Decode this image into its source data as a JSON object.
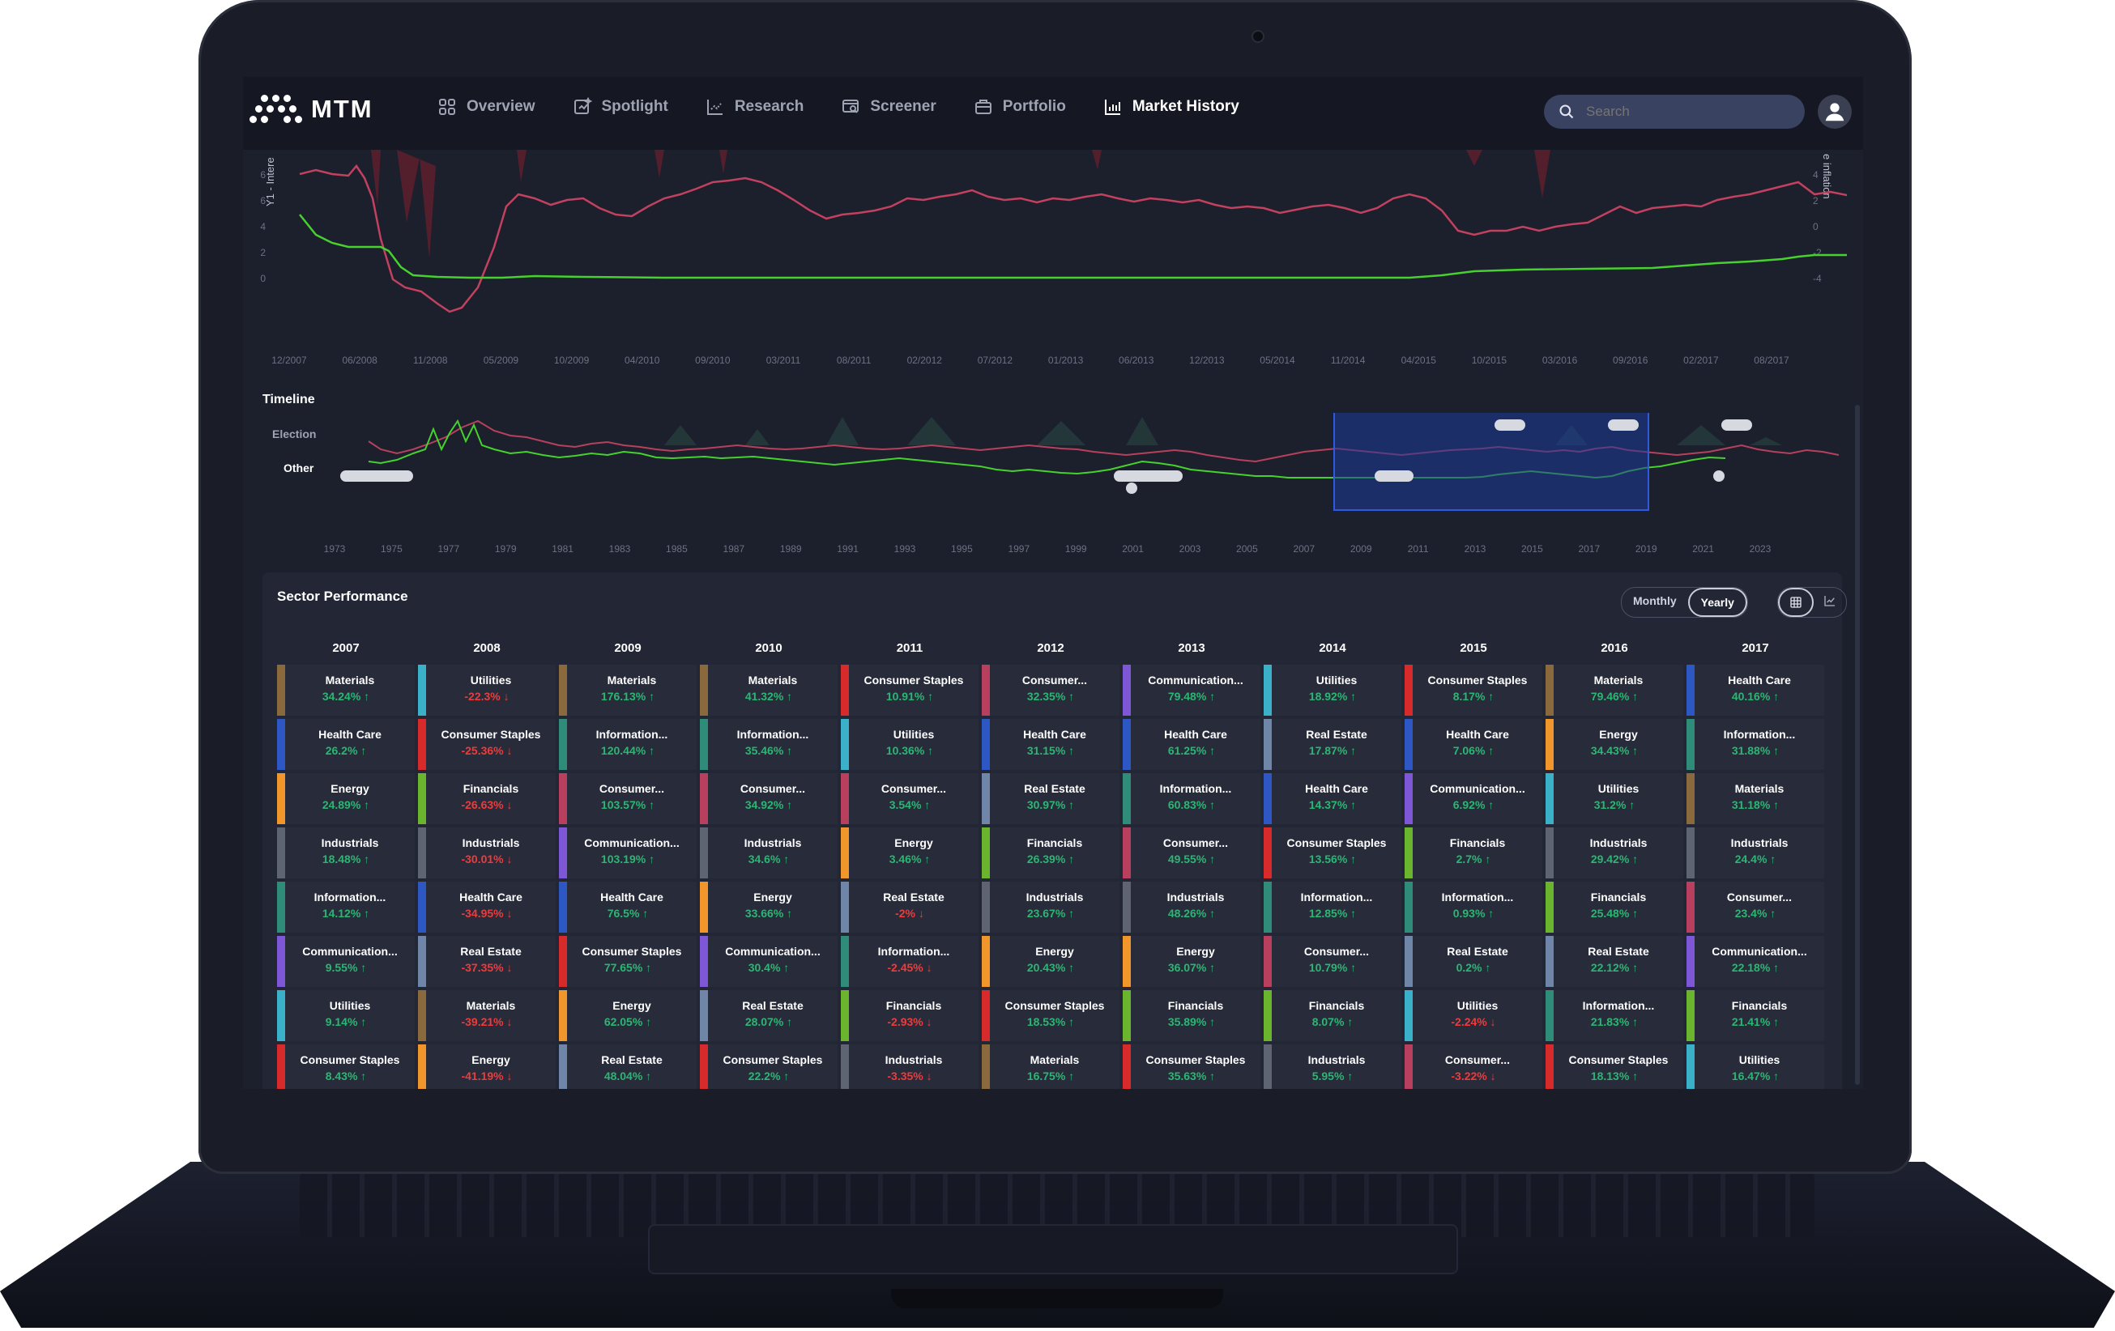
{
  "app": {
    "logo_text": "MTM",
    "nav": [
      {
        "label": "Overview",
        "icon": "grid-icon"
      },
      {
        "label": "Spotlight",
        "icon": "spotlight-icon"
      },
      {
        "label": "Research",
        "icon": "research-chart-icon"
      },
      {
        "label": "Screener",
        "icon": "screener-icon"
      },
      {
        "label": "Portfolio",
        "icon": "briefcase-icon"
      },
      {
        "label": "Market History",
        "icon": "bar-chart-icon",
        "active": true
      }
    ],
    "search_placeholder": "Search"
  },
  "main_chart": {
    "y_left_label": "Y1 - Intere",
    "y_right_label": "e inflation",
    "y_left_ticks": [
      "6",
      "6",
      "4",
      "2",
      "0"
    ],
    "y_right_ticks": [
      "4",
      "2",
      "0",
      "-2",
      "-4"
    ],
    "x_ticks": [
      "12/2007",
      "06/2008",
      "11/2008",
      "05/2009",
      "10/2009",
      "04/2010",
      "09/2010",
      "03/2011",
      "08/2011",
      "02/2012",
      "07/2012",
      "01/2013",
      "06/2013",
      "12/2013",
      "05/2014",
      "11/2014",
      "04/2015",
      "10/2015",
      "03/2016",
      "09/2016",
      "02/2017",
      "08/2017"
    ],
    "colors": {
      "pink": "#c2415f",
      "green": "#46d12e"
    }
  },
  "timeline": {
    "title": "Timeline",
    "rows": [
      "Election",
      "Other"
    ],
    "x_ticks": [
      "1973",
      "1975",
      "1977",
      "1979",
      "1981",
      "1983",
      "1985",
      "1987",
      "1989",
      "1991",
      "1993",
      "1995",
      "1997",
      "1999",
      "2001",
      "2003",
      "2005",
      "2007",
      "2009",
      "2011",
      "2013",
      "2015",
      "2017",
      "2019",
      "2021",
      "2023"
    ]
  },
  "sector_performance": {
    "title": "Sector Performance",
    "period_options": [
      "Monthly",
      "Yearly"
    ],
    "selected_period": "Yearly",
    "colors": {
      "Materials": "#8a6a3c",
      "Utilities": "#3bb0c9",
      "Health Care": "#2d58c4",
      "Consumer Staples": "#d72b2b",
      "Energy": "#f0962a",
      "Financials": "#6ab42e",
      "Industrials": "#5f6472",
      "Information...": "#2e8c78",
      "Communication...": "#7d57d6",
      "Real Estate": "#6f86a8",
      "Consumer...": "#b8405e"
    },
    "years": [
      {
        "year": "2007",
        "items": [
          {
            "name": "Materials",
            "value": "34.24%",
            "dir": "up"
          },
          {
            "name": "Health Care",
            "value": "26.2%",
            "dir": "up"
          },
          {
            "name": "Energy",
            "value": "24.89%",
            "dir": "up"
          },
          {
            "name": "Industrials",
            "value": "18.48%",
            "dir": "up"
          },
          {
            "name": "Information...",
            "value": "14.12%",
            "dir": "up"
          },
          {
            "name": "Communication...",
            "value": "9.55%",
            "dir": "up"
          },
          {
            "name": "Utilities",
            "value": "9.14%",
            "dir": "up"
          },
          {
            "name": "Consumer Staples",
            "value": "8.43%",
            "dir": "up"
          }
        ]
      },
      {
        "year": "2008",
        "items": [
          {
            "name": "Utilities",
            "value": "-22.3%",
            "dir": "down"
          },
          {
            "name": "Consumer Staples",
            "value": "-25.36%",
            "dir": "down"
          },
          {
            "name": "Financials",
            "value": "-26.63%",
            "dir": "down"
          },
          {
            "name": "Industrials",
            "value": "-30.01%",
            "dir": "down"
          },
          {
            "name": "Health Care",
            "value": "-34.95%",
            "dir": "down"
          },
          {
            "name": "Real Estate",
            "value": "-37.35%",
            "dir": "down"
          },
          {
            "name": "Materials",
            "value": "-39.21%",
            "dir": "down"
          },
          {
            "name": "Energy",
            "value": "-41.19%",
            "dir": "down"
          }
        ]
      },
      {
        "year": "2009",
        "items": [
          {
            "name": "Materials",
            "value": "176.13%",
            "dir": "up"
          },
          {
            "name": "Information...",
            "value": "120.44%",
            "dir": "up"
          },
          {
            "name": "Consumer...",
            "value": "103.57%",
            "dir": "up"
          },
          {
            "name": "Communication...",
            "value": "103.19%",
            "dir": "up"
          },
          {
            "name": "Health Care",
            "value": "76.5%",
            "dir": "up"
          },
          {
            "name": "Consumer Staples",
            "value": "77.65%",
            "dir": "up"
          },
          {
            "name": "Energy",
            "value": "62.05%",
            "dir": "up"
          },
          {
            "name": "Real Estate",
            "value": "48.04%",
            "dir": "up"
          }
        ]
      },
      {
        "year": "2010",
        "items": [
          {
            "name": "Materials",
            "value": "41.32%",
            "dir": "up"
          },
          {
            "name": "Information...",
            "value": "35.46%",
            "dir": "up"
          },
          {
            "name": "Consumer...",
            "value": "34.92%",
            "dir": "up"
          },
          {
            "name": "Industrials",
            "value": "34.6%",
            "dir": "up"
          },
          {
            "name": "Energy",
            "value": "33.66%",
            "dir": "up"
          },
          {
            "name": "Communication...",
            "value": "30.4%",
            "dir": "up"
          },
          {
            "name": "Real Estate",
            "value": "28.07%",
            "dir": "up"
          },
          {
            "name": "Consumer Staples",
            "value": "22.2%",
            "dir": "up"
          }
        ]
      },
      {
        "year": "2011",
        "items": [
          {
            "name": "Consumer Staples",
            "value": "10.91%",
            "dir": "up"
          },
          {
            "name": "Utilities",
            "value": "10.36%",
            "dir": "up"
          },
          {
            "name": "Consumer...",
            "value": "3.54%",
            "dir": "up"
          },
          {
            "name": "Energy",
            "value": "3.46%",
            "dir": "up"
          },
          {
            "name": "Real Estate",
            "value": "-2%",
            "dir": "down"
          },
          {
            "name": "Information...",
            "value": "-2.45%",
            "dir": "down"
          },
          {
            "name": "Financials",
            "value": "-2.93%",
            "dir": "down"
          },
          {
            "name": "Industrials",
            "value": "-3.35%",
            "dir": "down"
          }
        ]
      },
      {
        "year": "2012",
        "items": [
          {
            "name": "Consumer...",
            "value": "32.35%",
            "dir": "up"
          },
          {
            "name": "Health Care",
            "value": "31.15%",
            "dir": "up"
          },
          {
            "name": "Real Estate",
            "value": "30.97%",
            "dir": "up"
          },
          {
            "name": "Financials",
            "value": "26.39%",
            "dir": "up"
          },
          {
            "name": "Industrials",
            "value": "23.67%",
            "dir": "up"
          },
          {
            "name": "Energy",
            "value": "20.43%",
            "dir": "up"
          },
          {
            "name": "Consumer Staples",
            "value": "18.53%",
            "dir": "up"
          },
          {
            "name": "Materials",
            "value": "16.75%",
            "dir": "up"
          }
        ]
      },
      {
        "year": "2013",
        "items": [
          {
            "name": "Communication...",
            "value": "79.48%",
            "dir": "up"
          },
          {
            "name": "Health Care",
            "value": "61.25%",
            "dir": "up"
          },
          {
            "name": "Information...",
            "value": "60.83%",
            "dir": "up"
          },
          {
            "name": "Consumer...",
            "value": "49.55%",
            "dir": "up"
          },
          {
            "name": "Industrials",
            "value": "48.26%",
            "dir": "up"
          },
          {
            "name": "Energy",
            "value": "36.07%",
            "dir": "up"
          },
          {
            "name": "Financials",
            "value": "35.89%",
            "dir": "up"
          },
          {
            "name": "Consumer Staples",
            "value": "35.63%",
            "dir": "up"
          }
        ]
      },
      {
        "year": "2014",
        "items": [
          {
            "name": "Utilities",
            "value": "18.92%",
            "dir": "up"
          },
          {
            "name": "Real Estate",
            "value": "17.87%",
            "dir": "up"
          },
          {
            "name": "Health Care",
            "value": "14.37%",
            "dir": "up"
          },
          {
            "name": "Consumer Staples",
            "value": "13.56%",
            "dir": "up"
          },
          {
            "name": "Information...",
            "value": "12.85%",
            "dir": "up"
          },
          {
            "name": "Consumer...",
            "value": "10.79%",
            "dir": "up"
          },
          {
            "name": "Financials",
            "value": "8.07%",
            "dir": "up"
          },
          {
            "name": "Industrials",
            "value": "5.95%",
            "dir": "up"
          }
        ]
      },
      {
        "year": "2015",
        "items": [
          {
            "name": "Consumer Staples",
            "value": "8.17%",
            "dir": "up"
          },
          {
            "name": "Health Care",
            "value": "7.06%",
            "dir": "up"
          },
          {
            "name": "Communication...",
            "value": "6.92%",
            "dir": "up"
          },
          {
            "name": "Financials",
            "value": "2.7%",
            "dir": "up"
          },
          {
            "name": "Information...",
            "value": "0.93%",
            "dir": "up"
          },
          {
            "name": "Real Estate",
            "value": "0.2%",
            "dir": "up"
          },
          {
            "name": "Utilities",
            "value": "-2.24%",
            "dir": "down"
          },
          {
            "name": "Consumer...",
            "value": "-3.22%",
            "dir": "down"
          }
        ]
      },
      {
        "year": "2016",
        "items": [
          {
            "name": "Materials",
            "value": "79.46%",
            "dir": "up"
          },
          {
            "name": "Energy",
            "value": "34.43%",
            "dir": "up"
          },
          {
            "name": "Utilities",
            "value": "31.2%",
            "dir": "up"
          },
          {
            "name": "Industrials",
            "value": "29.42%",
            "dir": "up"
          },
          {
            "name": "Financials",
            "value": "25.48%",
            "dir": "up"
          },
          {
            "name": "Real Estate",
            "value": "22.12%",
            "dir": "up"
          },
          {
            "name": "Information...",
            "value": "21.83%",
            "dir": "up"
          },
          {
            "name": "Consumer Staples",
            "value": "18.13%",
            "dir": "up"
          }
        ]
      },
      {
        "year": "2017",
        "items": [
          {
            "name": "Health Care",
            "value": "40.16%",
            "dir": "up"
          },
          {
            "name": "Information...",
            "value": "31.88%",
            "dir": "up"
          },
          {
            "name": "Materials",
            "value": "31.18%",
            "dir": "up"
          },
          {
            "name": "Industrials",
            "value": "24.4%",
            "dir": "up"
          },
          {
            "name": "Consumer...",
            "value": "23.4%",
            "dir": "up"
          },
          {
            "name": "Communication...",
            "value": "22.18%",
            "dir": "up"
          },
          {
            "name": "Financials",
            "value": "21.41%",
            "dir": "up"
          },
          {
            "name": "Utilities",
            "value": "16.47%",
            "dir": "up"
          }
        ]
      }
    ]
  }
}
